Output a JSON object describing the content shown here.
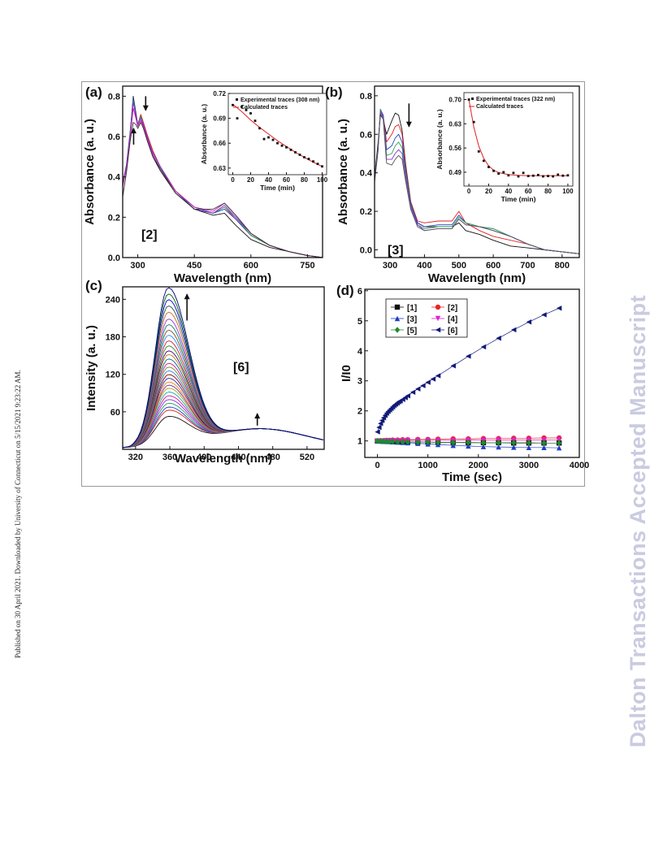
{
  "side_note": "Published on 30 April 2021. Downloaded by University of Connecticut on 5/15/2021 9:23:22 AM.",
  "watermark": "Dalton Transactions Accepted Manuscript",
  "chart_data": [
    {
      "panel": "(a)",
      "type": "line",
      "compound_label": "[2]",
      "xlabel": "Wavelength (nm)",
      "ylabel": "Absorbance (a. u.)",
      "xlim": [
        260,
        790
      ],
      "ylim": [
        0,
        0.85
      ],
      "x_ticks": [
        "300",
        "450",
        "600",
        "750"
      ],
      "y_ticks": [
        "0.0",
        "0.2",
        "0.4",
        "0.6",
        "0.8"
      ],
      "x": [
        260,
        270,
        280,
        288,
        295,
        300,
        308,
        315,
        325,
        340,
        360,
        400,
        450,
        500,
        530,
        560,
        600,
        650,
        700,
        750,
        790
      ],
      "series": [
        {
          "values": [
            0.38,
            0.44,
            0.62,
            0.8,
            0.72,
            0.66,
            0.7,
            0.65,
            0.58,
            0.5,
            0.43,
            0.32,
            0.24,
            0.21,
            0.22,
            0.16,
            0.09,
            0.05,
            0.03,
            0.01,
            0.0
          ],
          "color": "#111111"
        },
        {
          "values": [
            0.36,
            0.44,
            0.61,
            0.79,
            0.71,
            0.66,
            0.71,
            0.67,
            0.61,
            0.53,
            0.45,
            0.33,
            0.24,
            0.22,
            0.25,
            0.19,
            0.11,
            0.06,
            0.03,
            0.01,
            0.0
          ],
          "color": "#e02020"
        },
        {
          "values": [
            0.37,
            0.46,
            0.63,
            0.79,
            0.71,
            0.66,
            0.7,
            0.66,
            0.6,
            0.52,
            0.45,
            0.33,
            0.24,
            0.22,
            0.24,
            0.19,
            0.11,
            0.06,
            0.03,
            0.01,
            0.0
          ],
          "color": "#1f3cc8"
        },
        {
          "values": [
            0.37,
            0.45,
            0.62,
            0.78,
            0.7,
            0.66,
            0.7,
            0.66,
            0.6,
            0.52,
            0.45,
            0.33,
            0.25,
            0.22,
            0.25,
            0.2,
            0.11,
            0.06,
            0.03,
            0.01,
            0.0
          ],
          "color": "#2aa048"
        },
        {
          "values": [
            0.36,
            0.45,
            0.61,
            0.77,
            0.7,
            0.66,
            0.69,
            0.66,
            0.6,
            0.52,
            0.45,
            0.33,
            0.25,
            0.22,
            0.26,
            0.2,
            0.12,
            0.06,
            0.03,
            0.01,
            0.0
          ],
          "color": "#8a2be2"
        },
        {
          "values": [
            0.35,
            0.44,
            0.6,
            0.74,
            0.69,
            0.65,
            0.68,
            0.65,
            0.59,
            0.51,
            0.44,
            0.33,
            0.25,
            0.23,
            0.27,
            0.21,
            0.12,
            0.06,
            0.03,
            0.01,
            0.0
          ],
          "color": "#d11aa6"
        },
        {
          "values": [
            0.3,
            0.42,
            0.58,
            0.67,
            0.66,
            0.64,
            0.67,
            0.64,
            0.58,
            0.5,
            0.44,
            0.32,
            0.24,
            0.24,
            0.27,
            0.21,
            0.12,
            0.06,
            0.03,
            0.01,
            0.0
          ],
          "color": "#333333"
        }
      ],
      "inset": {
        "legend": [
          "Experimental traces (308 nm)",
          "Calculated traces"
        ],
        "xlabel": "Time (min)",
        "ylabel": "Absorbance (a. u.)",
        "xlim": [
          -5,
          105
        ],
        "ylim": [
          0.622,
          0.72
        ],
        "x_ticks": [
          "0",
          "20",
          "40",
          "60",
          "80",
          "100"
        ],
        "y_ticks": [
          "0.63",
          "0.66",
          "0.69",
          "0.72"
        ],
        "experimental": {
          "x": [
            0,
            5,
            10,
            15,
            20,
            25,
            30,
            35,
            40,
            45,
            50,
            55,
            60,
            65,
            70,
            75,
            80,
            85,
            90,
            95,
            100
          ],
          "y": [
            0.706,
            0.69,
            0.704,
            0.7,
            0.696,
            0.687,
            0.678,
            0.665,
            0.667,
            0.664,
            0.66,
            0.657,
            0.655,
            0.652,
            0.649,
            0.646,
            0.643,
            0.641,
            0.638,
            0.635,
            0.632
          ]
        },
        "calculated": {
          "x": [
            0,
            10,
            20,
            30,
            40,
            50,
            60,
            70,
            80,
            90,
            100
          ],
          "y": [
            0.707,
            0.698,
            0.688,
            0.679,
            0.671,
            0.663,
            0.656,
            0.649,
            0.643,
            0.637,
            0.632
          ]
        }
      }
    },
    {
      "panel": "(b)",
      "type": "line",
      "compound_label": "[3]",
      "xlabel": "Wavelength (nm)",
      "ylabel": "Absorbance (a. u.)",
      "xlim": [
        255,
        850
      ],
      "ylim": [
        -0.04,
        0.85
      ],
      "x_ticks": [
        "300",
        "400",
        "500",
        "600",
        "700",
        "800"
      ],
      "y_ticks": [
        "0.0",
        "0.2",
        "0.4",
        "0.6",
        "0.8"
      ],
      "x": [
        255,
        265,
        272,
        280,
        290,
        305,
        315,
        325,
        335,
        345,
        360,
        380,
        400,
        440,
        480,
        500,
        520,
        560,
        600,
        650,
        700,
        750,
        800,
        850
      ],
      "series": [
        {
          "values": [
            0.38,
            0.55,
            0.7,
            0.68,
            0.6,
            0.67,
            0.71,
            0.7,
            0.62,
            0.45,
            0.25,
            0.14,
            0.12,
            0.12,
            0.12,
            0.14,
            0.1,
            0.08,
            0.05,
            0.02,
            0.01,
            0.0,
            -0.01,
            -0.02
          ],
          "color": "#111111"
        },
        {
          "values": [
            0.36,
            0.52,
            0.72,
            0.7,
            0.56,
            0.6,
            0.64,
            0.65,
            0.6,
            0.44,
            0.25,
            0.15,
            0.14,
            0.15,
            0.15,
            0.2,
            0.14,
            0.1,
            0.07,
            0.05,
            0.03,
            0.0,
            -0.01,
            -0.02
          ],
          "color": "#e02020"
        },
        {
          "values": [
            0.36,
            0.52,
            0.73,
            0.7,
            0.52,
            0.54,
            0.58,
            0.6,
            0.56,
            0.42,
            0.24,
            0.14,
            0.12,
            0.13,
            0.13,
            0.18,
            0.14,
            0.12,
            0.11,
            0.07,
            0.03,
            0.0,
            -0.01,
            -0.02
          ],
          "color": "#1f3cc8"
        },
        {
          "values": [
            0.36,
            0.52,
            0.73,
            0.69,
            0.49,
            0.5,
            0.54,
            0.56,
            0.53,
            0.4,
            0.23,
            0.13,
            0.11,
            0.12,
            0.12,
            0.17,
            0.14,
            0.12,
            0.11,
            0.07,
            0.03,
            0.0,
            -0.01,
            -0.02
          ],
          "color": "#2aa048"
        },
        {
          "values": [
            0.36,
            0.52,
            0.72,
            0.69,
            0.47,
            0.47,
            0.5,
            0.52,
            0.5,
            0.38,
            0.22,
            0.13,
            0.1,
            0.11,
            0.11,
            0.16,
            0.13,
            0.12,
            0.1,
            0.07,
            0.03,
            0.0,
            -0.01,
            -0.02
          ],
          "color": "#8a2be2"
        },
        {
          "values": [
            0.35,
            0.51,
            0.71,
            0.68,
            0.45,
            0.44,
            0.47,
            0.49,
            0.47,
            0.36,
            0.21,
            0.12,
            0.1,
            0.11,
            0.11,
            0.16,
            0.13,
            0.12,
            0.1,
            0.07,
            0.03,
            0.0,
            -0.01,
            -0.02
          ],
          "color": "#555555"
        }
      ],
      "inset": {
        "legend": [
          "Experimental traces (322 nm)",
          "Calculated traces"
        ],
        "xlabel": "Time (min)",
        "ylabel": "Absorbance (a. u.)",
        "xlim": [
          -5,
          105
        ],
        "ylim": [
          0.45,
          0.72
        ],
        "x_ticks": [
          "0",
          "20",
          "40",
          "60",
          "80",
          "100"
        ],
        "y_ticks": [
          "0.49",
          "0.56",
          "0.63",
          "0.70"
        ],
        "experimental": {
          "x": [
            0,
            5,
            10,
            15,
            20,
            25,
            30,
            35,
            40,
            45,
            50,
            55,
            60,
            65,
            70,
            75,
            80,
            85,
            90,
            95,
            100
          ],
          "y": [
            0.7,
            0.635,
            0.55,
            0.523,
            0.505,
            0.494,
            0.486,
            0.49,
            0.481,
            0.488,
            0.478,
            0.488,
            0.479,
            0.48,
            0.482,
            0.478,
            0.479,
            0.478,
            0.483,
            0.48,
            0.481
          ]
        },
        "calculated": {
          "x": [
            0,
            5,
            10,
            15,
            20,
            25,
            30,
            40,
            50,
            60,
            70,
            80,
            90,
            100
          ],
          "y": [
            0.7,
            0.62,
            0.565,
            0.53,
            0.508,
            0.496,
            0.489,
            0.483,
            0.481,
            0.48,
            0.48,
            0.48,
            0.48,
            0.48
          ]
        }
      }
    },
    {
      "panel": "(c)",
      "type": "line",
      "compound_label": "[6]",
      "xlabel": "Wavelength (nm)",
      "ylabel": "Intensity (a. u.)",
      "xlim": [
        305,
        540
      ],
      "ylim": [
        0,
        260
      ],
      "x_ticks": [
        "320",
        "360",
        "400",
        "440",
        "480",
        "520"
      ],
      "y_ticks": [
        "60",
        "120",
        "180",
        "240"
      ],
      "peak_wavelength": 358,
      "peak_intensities": [
        45,
        55,
        60,
        66,
        72,
        78,
        84,
        90,
        95,
        100,
        106,
        112,
        118,
        124,
        130,
        137,
        144,
        150,
        158,
        166,
        175,
        183,
        192,
        201,
        212,
        222,
        232,
        241,
        251
      ],
      "colors": [
        "#111111",
        "#e02020",
        "#1f3cc8",
        "#2aa048",
        "#8a2be2",
        "#d11aa6",
        "#1aa6a6",
        "#a0a020",
        "#7a2a8a",
        "#ff7f0e",
        "#2a2a9a",
        "#8b0000",
        "#3a7ad8",
        "#6b8e23",
        "#c71585",
        "#00688b",
        "#b8860b",
        "#4b0082",
        "#228b22",
        "#dc143c",
        "#1e90ff",
        "#8b4513",
        "#008080",
        "#9932cc",
        "#d2691e",
        "#2f4f4f",
        "#0000cd",
        "#006400",
        "#000080"
      ]
    },
    {
      "panel": "(d)",
      "type": "scatter",
      "xlabel": "Time (sec)",
      "ylabel": "I/I0",
      "xlim": [
        -250,
        4000
      ],
      "ylim": [
        0.45,
        6.05
      ],
      "x_ticks": [
        "0",
        "1000",
        "2000",
        "3000",
        "4000"
      ],
      "y_ticks": [
        "1",
        "2",
        "3",
        "4",
        "5",
        "6"
      ],
      "series": [
        {
          "name": "[1]",
          "color": "#111111",
          "marker": "square",
          "x": [
            0,
            60,
            120,
            180,
            240,
            300,
            400,
            500,
            600,
            800,
            1000,
            1200,
            1500,
            1800,
            2100,
            2400,
            2700,
            3000,
            3300,
            3600
          ],
          "y": [
            1.0,
            1.0,
            0.99,
            0.99,
            0.99,
            0.98,
            0.98,
            0.97,
            0.97,
            0.96,
            0.96,
            0.95,
            0.95,
            0.94,
            0.94,
            0.94,
            0.93,
            0.93,
            0.93,
            0.93
          ]
        },
        {
          "name": "[2]",
          "color": "#e8262a",
          "marker": "circle",
          "x": [
            0,
            60,
            120,
            180,
            240,
            300,
            400,
            500,
            600,
            800,
            1000,
            1200,
            1500,
            1800,
            2100,
            2400,
            2700,
            3000,
            3300,
            3600
          ],
          "y": [
            1.0,
            1.01,
            1.01,
            1.02,
            1.02,
            1.03,
            1.03,
            1.04,
            1.04,
            1.05,
            1.05,
            1.06,
            1.07,
            1.07,
            1.08,
            1.08,
            1.09,
            1.09,
            1.1,
            1.1
          ]
        },
        {
          "name": "[3]",
          "color": "#1f3cc8",
          "marker": "triangle-up",
          "x": [
            0,
            60,
            120,
            180,
            240,
            300,
            400,
            500,
            600,
            800,
            1000,
            1200,
            1500,
            1800,
            2100,
            2400,
            2700,
            3000,
            3300,
            3600
          ],
          "y": [
            1.0,
            1.0,
            0.99,
            0.99,
            0.98,
            0.97,
            0.96,
            0.95,
            0.94,
            0.92,
            0.9,
            0.88,
            0.85,
            0.83,
            0.81,
            0.8,
            0.79,
            0.78,
            0.78,
            0.77
          ]
        },
        {
          "name": "[4]",
          "color": "#e020d0",
          "marker": "triangle-down",
          "x": [
            0,
            60,
            120,
            180,
            240,
            300,
            400,
            500,
            600,
            800,
            1000,
            1200,
            1500,
            1800,
            2100,
            2400,
            2700,
            3000,
            3300,
            3600
          ],
          "y": [
            1.0,
            1.0,
            1.0,
            1.01,
            1.01,
            1.01,
            1.01,
            1.01,
            1.02,
            1.02,
            1.02,
            1.02,
            1.02,
            1.03,
            1.03,
            1.03,
            1.03,
            1.03,
            1.03,
            1.04
          ]
        },
        {
          "name": "[5]",
          "color": "#1f8a2a",
          "marker": "diamond",
          "x": [
            0,
            60,
            120,
            180,
            240,
            300,
            400,
            500,
            600,
            800,
            1000,
            1200,
            1500,
            1800,
            2100,
            2400,
            2700,
            3000,
            3300,
            3600
          ],
          "y": [
            1.0,
            0.99,
            0.99,
            0.98,
            0.98,
            0.98,
            0.97,
            0.97,
            0.97,
            0.96,
            0.96,
            0.95,
            0.95,
            0.95,
            0.94,
            0.94,
            0.94,
            0.94,
            0.93,
            0.93
          ]
        },
        {
          "name": "[6]",
          "color": "#111a78",
          "marker": "triangle-left",
          "x": [
            0,
            30,
            60,
            90,
            120,
            150,
            180,
            210,
            240,
            270,
            300,
            330,
            360,
            390,
            420,
            450,
            500,
            550,
            600,
            700,
            800,
            900,
            1000,
            1100,
            1200,
            1500,
            1800,
            2100,
            2400,
            2700,
            3000,
            3300,
            3600
          ],
          "y": [
            1.3,
            1.45,
            1.58,
            1.68,
            1.77,
            1.85,
            1.92,
            1.98,
            2.03,
            2.08,
            2.13,
            2.18,
            2.22,
            2.26,
            2.3,
            2.33,
            2.38,
            2.44,
            2.5,
            2.62,
            2.73,
            2.84,
            2.95,
            3.06,
            3.17,
            3.5,
            3.82,
            4.13,
            4.42,
            4.7,
            4.96,
            5.2,
            5.42
          ]
        }
      ]
    }
  ]
}
